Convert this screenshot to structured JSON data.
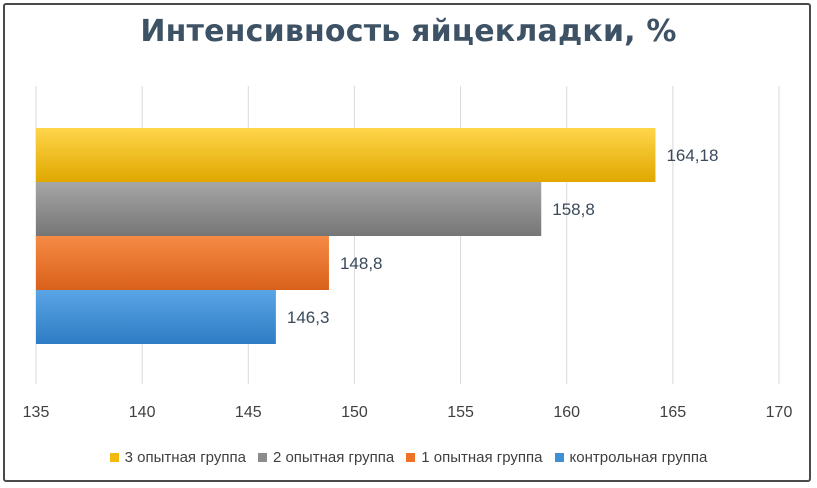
{
  "chart_data": {
    "type": "bar",
    "orientation": "horizontal",
    "title": "Интенсивность яйцекладки, %",
    "xlabel": "",
    "ylabel": "",
    "xlim": [
      135,
      170
    ],
    "xticks": [
      135,
      140,
      145,
      150,
      155,
      160,
      165,
      170
    ],
    "grid": "vertical",
    "legend_position": "bottom",
    "series": [
      {
        "name": "3 опытная группа",
        "value": 164.18,
        "label": "164,18",
        "color": "#f2b90f"
      },
      {
        "name": "2 опытная группа",
        "value": 158.8,
        "label": "158,8",
        "color": "#8c8c8c"
      },
      {
        "name": "1 опытная группа",
        "value": 148.8,
        "label": "148,8",
        "color": "#ed7226"
      },
      {
        "name": "контрольная группа",
        "value": 146.3,
        "label": "146,3",
        "color": "#3d8fd6"
      }
    ]
  }
}
